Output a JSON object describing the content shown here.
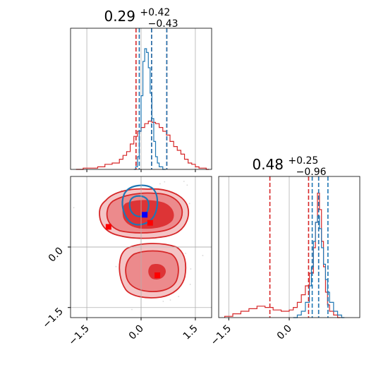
{
  "colors": {
    "red": "#d62728",
    "red_fill_outer": "#f4c4c5",
    "red_fill_mid": "#ec8a8c",
    "red_fill_inner": "#dd3436",
    "blue": "#1f77b4",
    "marker_blue": "#0000ff",
    "marker_red": "#ff0000",
    "grid": "#b0b0b0",
    "axis": "#000000"
  },
  "chart_data": [
    {
      "type": "histogram",
      "panel": "top-left",
      "title": {
        "value": "0.29",
        "plus": "+0.42",
        "minus": "−0.43"
      },
      "xlim": [
        -1.95,
        1.95
      ],
      "xticks": [
        -1.5,
        0.0,
        1.5
      ],
      "tick_labels_shown": false,
      "grid": true,
      "quantile_lines": {
        "red": [
          -0.14,
          0.29,
          0.71
        ],
        "blue": [
          -0.05,
          0.29,
          0.71
        ]
      },
      "series": [
        {
          "name": "red_samples",
          "color": "red",
          "x": [
            -1.8,
            -1.6,
            -1.4,
            -1.2,
            -1.0,
            -0.8,
            -0.6,
            -0.5,
            -0.4,
            -0.3,
            -0.2,
            -0.1,
            0.0,
            0.1,
            0.2,
            0.3,
            0.4,
            0.5,
            0.6,
            0.7,
            0.8,
            0.9,
            1.0,
            1.1,
            1.2,
            1.3,
            1.4,
            1.5,
            1.6,
            1.8
          ],
          "values": [
            0.0,
            0.01,
            0.01,
            0.02,
            0.04,
            0.05,
            0.08,
            0.11,
            0.14,
            0.2,
            0.26,
            0.3,
            0.33,
            0.36,
            0.38,
            0.37,
            0.36,
            0.33,
            0.3,
            0.27,
            0.22,
            0.18,
            0.15,
            0.12,
            0.08,
            0.05,
            0.04,
            0.02,
            0.01,
            0.0
          ]
        },
        {
          "name": "blue_samples",
          "color": "blue",
          "x": [
            -0.2,
            -0.15,
            -0.1,
            -0.05,
            0.0,
            0.05,
            0.1,
            0.15,
            0.2,
            0.25,
            0.3,
            0.35,
            0.4,
            0.45,
            0.5,
            0.6
          ],
          "values": [
            0.0,
            0.02,
            0.1,
            0.3,
            0.58,
            0.85,
            0.95,
            0.92,
            0.8,
            0.6,
            0.4,
            0.22,
            0.1,
            0.05,
            0.02,
            0.0
          ]
        }
      ]
    },
    {
      "type": "contour",
      "panel": "bottom-left",
      "xlim": [
        -1.95,
        1.95
      ],
      "ylim": [
        -1.75,
        1.75
      ],
      "xticks": [
        -1.5,
        0.0,
        1.5
      ],
      "yticks": [
        -1.5,
        0.0
      ],
      "xtick_labels": [
        "−1.5",
        "0.0",
        "1.5"
      ],
      "ytick_labels": [
        "−1.5",
        "0.0"
      ],
      "grid": true,
      "truth_lines": {
        "x": 0.0,
        "y": 0.0
      },
      "markers": [
        {
          "name": "blue_marker",
          "x": 0.1,
          "y": 0.8,
          "color": "marker_blue"
        },
        {
          "name": "red_marker_1",
          "x": 0.25,
          "y": 0.6,
          "color": "marker_red"
        },
        {
          "name": "red_marker_2",
          "x": -0.9,
          "y": 0.5,
          "color": "marker_red"
        },
        {
          "name": "red_marker_3",
          "x": 0.45,
          "y": -0.7,
          "color": "marker_red"
        }
      ]
    },
    {
      "type": "histogram",
      "panel": "bottom-right",
      "title": {
        "value": "0.48",
        "plus": "+0.25",
        "minus": "−0.96"
      },
      "xlim": [
        -1.75,
        1.75
      ],
      "xticks": [
        -1.5,
        0.0
      ],
      "xtick_labels": [
        "−1.5",
        "0.0"
      ],
      "grid": true,
      "quantile_lines": {
        "red": [
          -0.48,
          0.48,
          0.73
        ],
        "blue": [
          0.57,
          0.73,
          0.96
        ]
      },
      "series": [
        {
          "name": "red_samples",
          "color": "red",
          "x": [
            -1.6,
            -1.4,
            -1.2,
            -1.0,
            -0.8,
            -0.6,
            -0.4,
            -0.2,
            0.0,
            0.1,
            0.2,
            0.3,
            0.4,
            0.5,
            0.6,
            0.65,
            0.7,
            0.75,
            0.8,
            0.85,
            0.9,
            0.95,
            1.0,
            1.1,
            1.2
          ],
          "values": [
            0.01,
            0.03,
            0.05,
            0.07,
            0.09,
            0.08,
            0.06,
            0.05,
            0.06,
            0.08,
            0.12,
            0.18,
            0.25,
            0.35,
            0.55,
            0.75,
            0.98,
            0.85,
            0.6,
            0.4,
            0.2,
            0.1,
            0.05,
            0.02,
            0.0
          ]
        },
        {
          "name": "blue_samples",
          "color": "blue",
          "x": [
            0.1,
            0.2,
            0.3,
            0.4,
            0.5,
            0.55,
            0.6,
            0.65,
            0.7,
            0.75,
            0.8,
            0.85,
            0.9,
            0.95,
            1.0,
            1.1,
            1.2,
            1.3
          ],
          "values": [
            0.0,
            0.02,
            0.05,
            0.12,
            0.25,
            0.4,
            0.6,
            0.75,
            0.8,
            0.7,
            0.55,
            0.42,
            0.3,
            0.2,
            0.12,
            0.05,
            0.02,
            0.0
          ]
        }
      ]
    }
  ]
}
